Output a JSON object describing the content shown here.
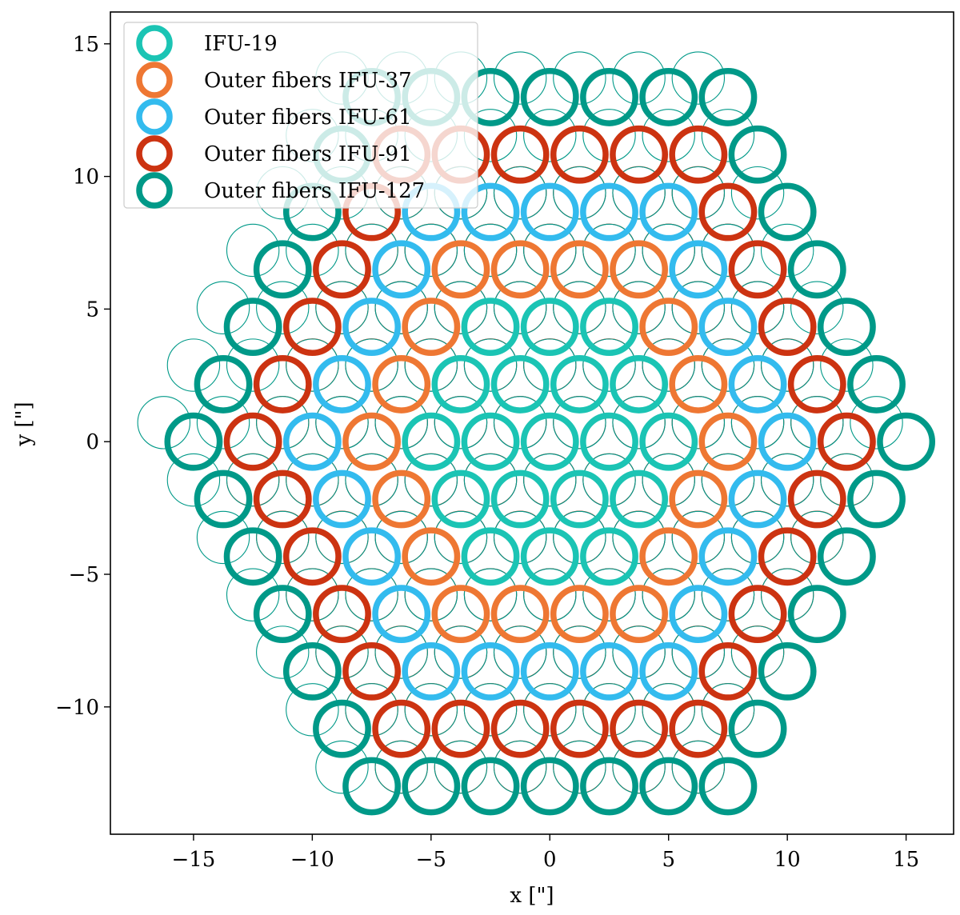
{
  "chart_data": {
    "type": "scatter",
    "title": "",
    "xlabel": "x [\"]",
    "ylabel": "y [\"]",
    "xlim": [
      -18.5,
      17.0
    ],
    "ylim": [
      -14.8,
      16.2
    ],
    "x_ticks": [
      -15,
      -10,
      -5,
      0,
      5,
      10,
      15
    ],
    "y_ticks": [
      -10,
      -5,
      0,
      5,
      10,
      15
    ],
    "x_tick_labels": [
      "−15",
      "−10",
      "−5",
      "0",
      "5",
      "10",
      "15"
    ],
    "y_tick_labels": [
      "−10",
      "−5",
      "0",
      "5",
      "10",
      "15"
    ],
    "grid": false,
    "legend_position": "top-left",
    "fiber_pitch_arcsec": 2.5,
    "fiber_radius_arcsec": 1.1,
    "ring_colors": [
      "#1bc4b4",
      "#ee7733",
      "#33bbee",
      "#cc3311",
      "#009988"
    ],
    "series": [
      {
        "name": "IFU-19",
        "label": "IFU-19",
        "color": "#1bc4b4",
        "hex_rings": [
          0,
          1,
          2
        ]
      },
      {
        "name": "Outer fibers IFU-37",
        "label": "Outer fibers IFU-37",
        "color": "#ee7733",
        "hex_rings": [
          3
        ]
      },
      {
        "name": "Outer fibers IFU-61",
        "label": "Outer fibers IFU-61",
        "color": "#33bbee",
        "hex_rings": [
          4
        ]
      },
      {
        "name": "Outer fibers IFU-91",
        "label": "Outer fibers IFU-91",
        "color": "#cc3311",
        "hex_rings": [
          5
        ]
      },
      {
        "name": "Outer fibers IFU-127",
        "label": "Outer fibers IFU-127",
        "color": "#009988",
        "hex_rings": [
          6
        ]
      }
    ],
    "background_layouts": [
      {
        "name": "offset-1",
        "color": "#33bbee",
        "offset": [
          1.25,
          0.72
        ],
        "rings": 4
      },
      {
        "name": "offset-2",
        "color": "#cc3311",
        "offset": [
          0.0,
          -1.44
        ],
        "rings": 5
      },
      {
        "name": "offset-3",
        "color": "#009988",
        "offset": [
          -1.25,
          0.72
        ],
        "rings": 6
      }
    ]
  }
}
